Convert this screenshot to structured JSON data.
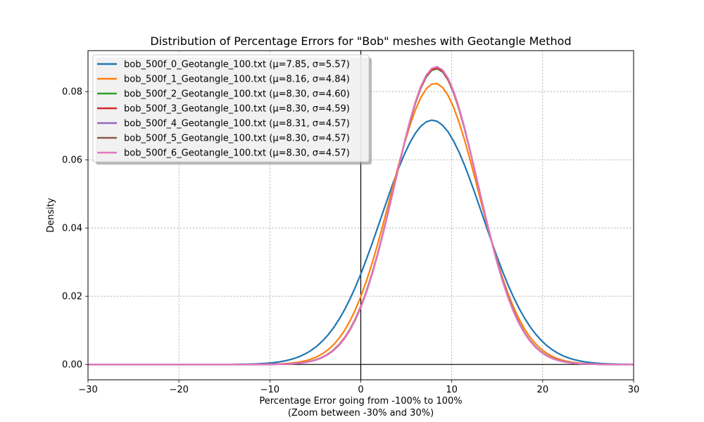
{
  "chart_data": {
    "type": "line",
    "title": "Distribution of Percentage Errors for \"Bob\" meshes with Geotangle Method",
    "xlabel": "Percentage Error going from -100% to 100%",
    "xlabel2": "(Zoom between -30% and 30%)",
    "ylabel": "Density",
    "xlim": [
      -30,
      30
    ],
    "ylim": [
      -0.0045,
      0.092
    ],
    "xticks": [
      -30,
      -20,
      -10,
      0,
      10,
      20,
      30
    ],
    "yticks": [
      "0.00",
      "0.02",
      "0.04",
      "0.06",
      "0.08"
    ],
    "grid": true,
    "legend_position": "upper-left",
    "series": [
      {
        "name": "bob_500f_0_Geotangle_100.txt (μ=7.85, σ=5.57)",
        "mu": 7.85,
        "sigma": 5.57,
        "color": "#1f77b4"
      },
      {
        "name": "bob_500f_1_Geotangle_100.txt (μ=8.16, σ=4.84)",
        "mu": 8.16,
        "sigma": 4.84,
        "color": "#ff7f0e"
      },
      {
        "name": "bob_500f_2_Geotangle_100.txt (μ=8.30, σ=4.60)",
        "mu": 8.3,
        "sigma": 4.6,
        "color": "#2ca02c"
      },
      {
        "name": "bob_500f_3_Geotangle_100.txt (μ=8.30, σ=4.59)",
        "mu": 8.3,
        "sigma": 4.59,
        "color": "#d62728"
      },
      {
        "name": "bob_500f_4_Geotangle_100.txt (μ=8.31, σ=4.57)",
        "mu": 8.31,
        "sigma": 4.57,
        "color": "#9467bd"
      },
      {
        "name": "bob_500f_5_Geotangle_100.txt (μ=8.30, σ=4.57)",
        "mu": 8.3,
        "sigma": 4.57,
        "color": "#8c564b"
      },
      {
        "name": "bob_500f_6_Geotangle_100.txt (μ=8.30, σ=4.57)",
        "mu": 8.3,
        "sigma": 4.57,
        "color": "#e377c2"
      }
    ]
  }
}
